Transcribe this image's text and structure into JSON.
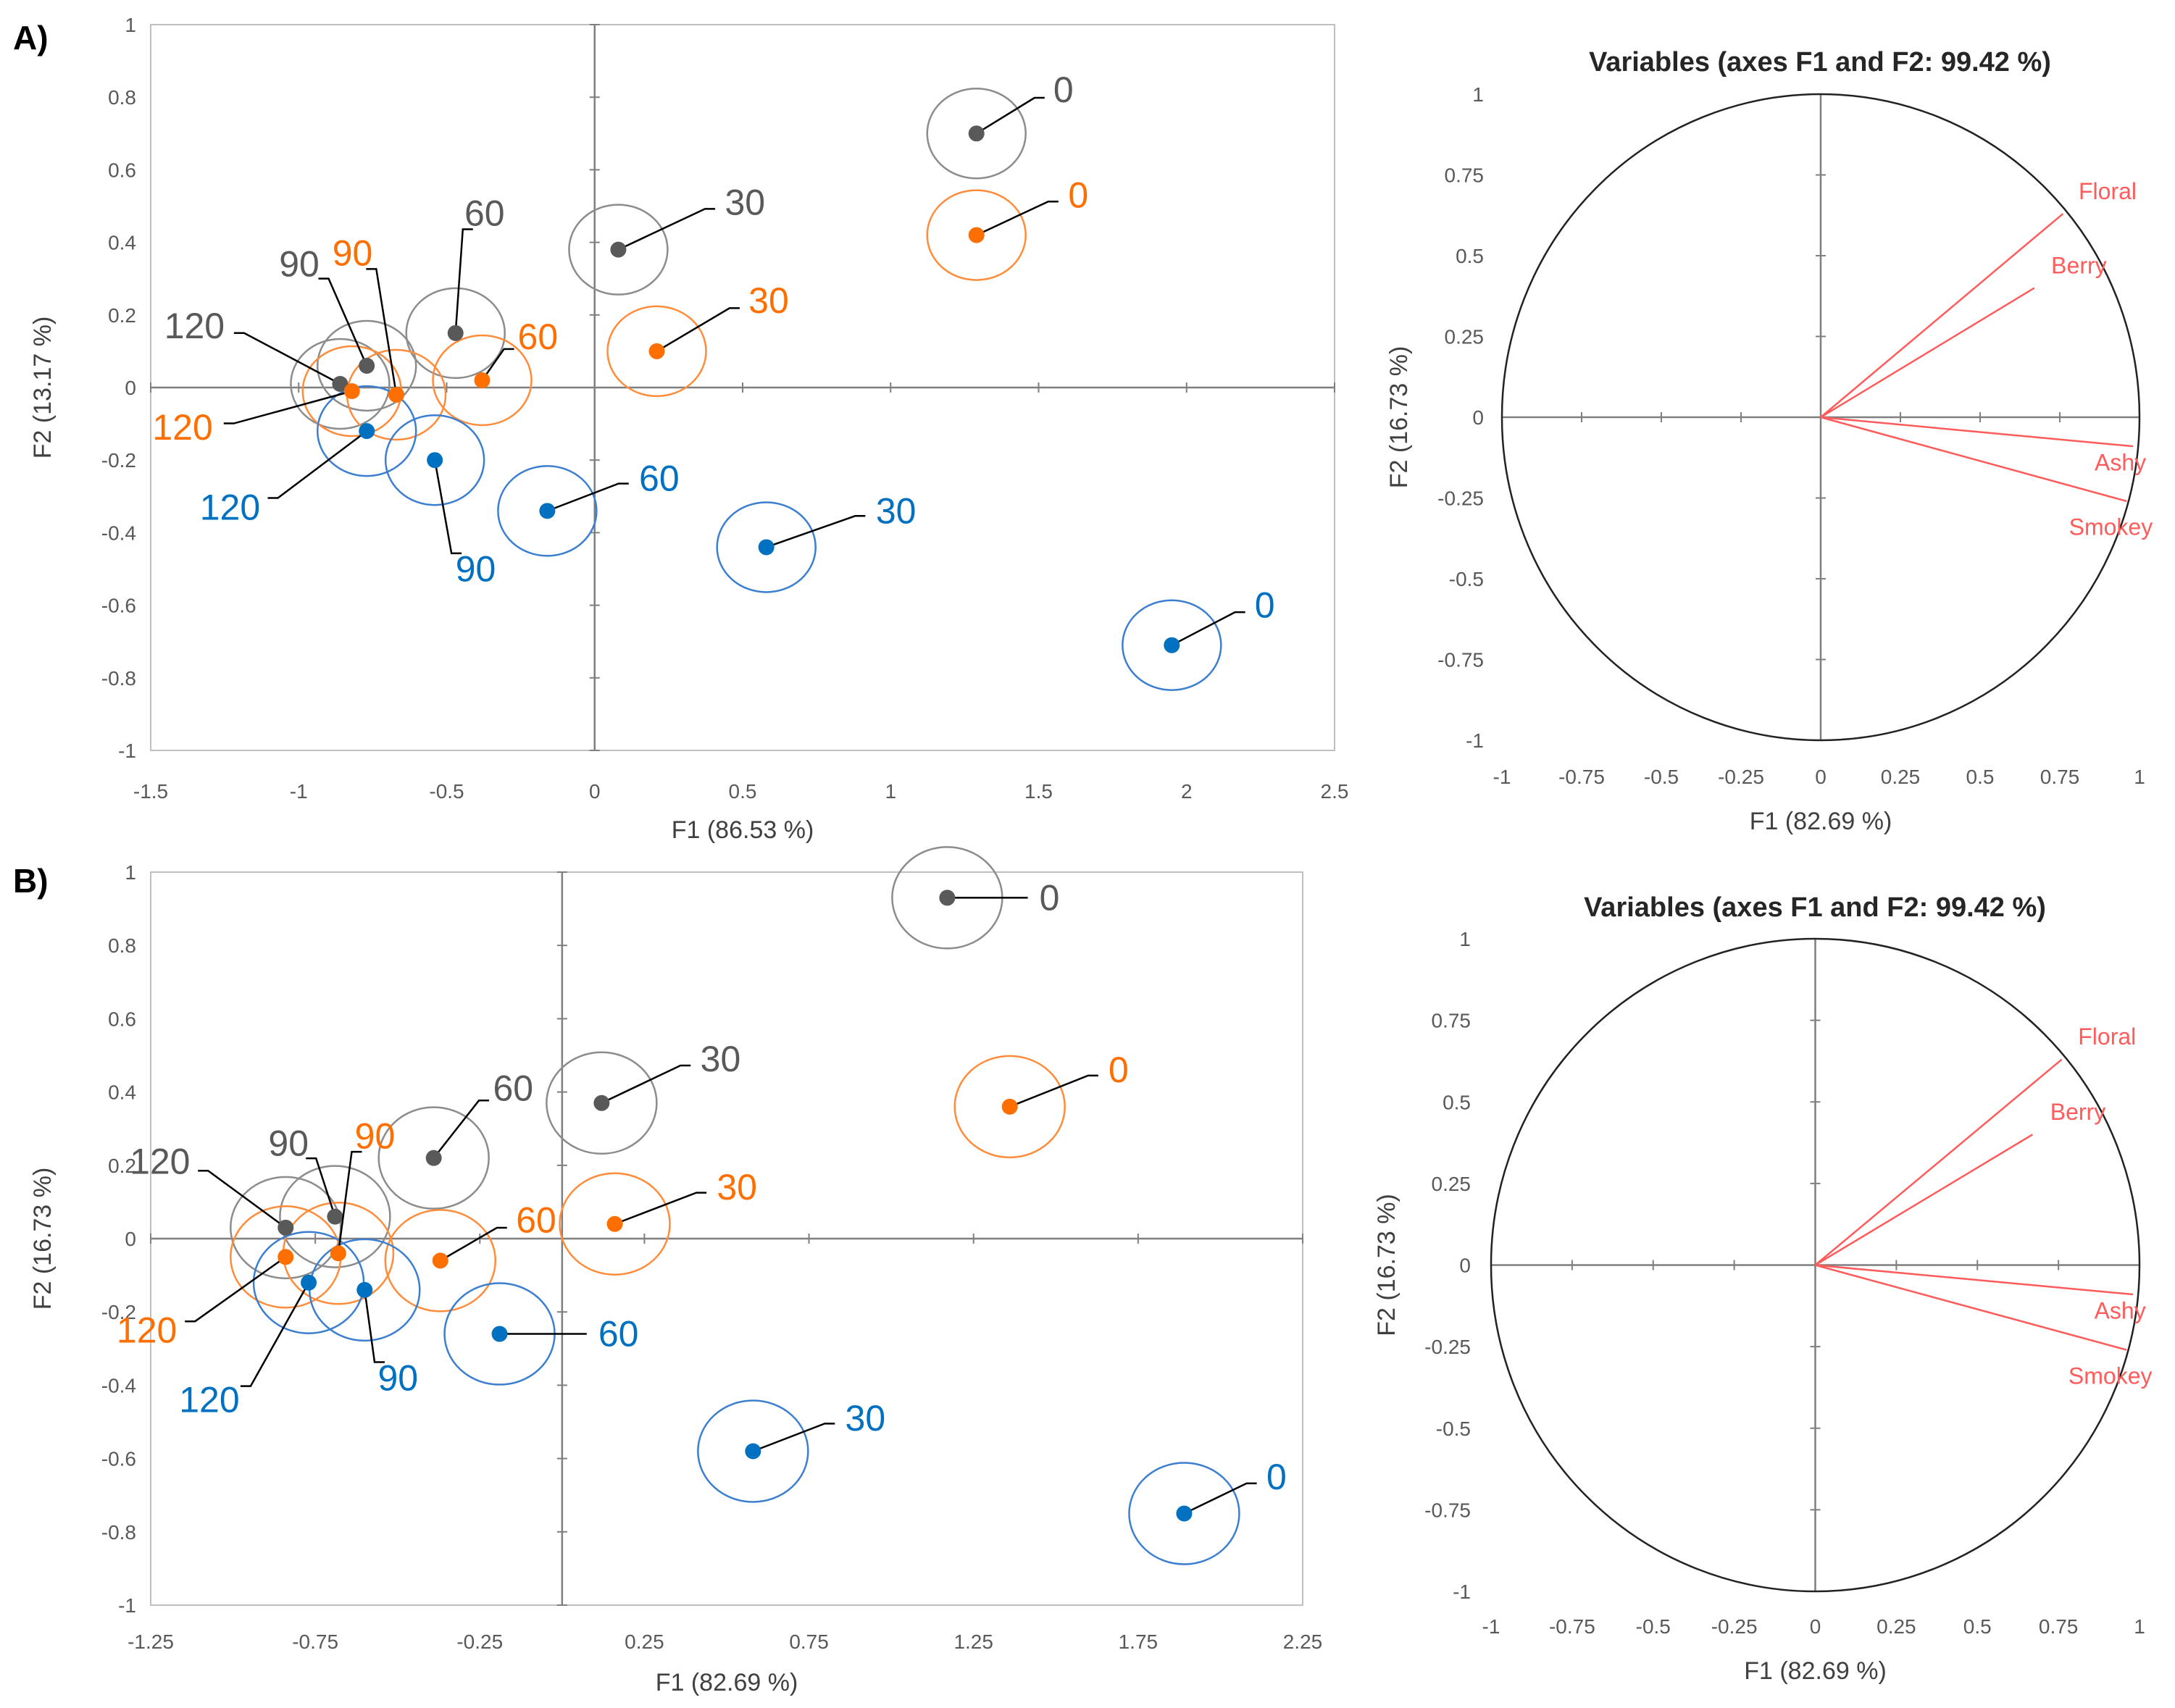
{
  "panel_labels": [
    "A)",
    "B)"
  ],
  "colors": {
    "gray": "#595959",
    "orange": "#ff6f00",
    "blue": "#0070c0",
    "ellipse_gray": "#8c8c8c",
    "ellipse_orange": "#ff8c3a",
    "ellipse_blue": "#3c7fd0",
    "vector": "#ff5b5b",
    "axis": "#7f7f7f",
    "circle": "#222222"
  },
  "chart_data": [
    {
      "type": "scatter",
      "panel": "A)",
      "xlabel": "F1 (86.53 %)",
      "ylabel": "F2 (13.17 %)",
      "xlim": [
        -1.5,
        2.5
      ],
      "ylim": [
        -1,
        1
      ],
      "xticks": [
        "-1.5",
        "-1",
        "-0.5",
        "0",
        "0.5",
        "1",
        "1.5",
        "2",
        "2.5"
      ],
      "yticks": [
        "-1",
        "-0.8",
        "-0.6",
        "-0.4",
        "-0.2",
        "0",
        "0.2",
        "0.4",
        "0.6",
        "0.8",
        "1"
      ],
      "series": [
        {
          "name": "gray",
          "points": [
            {
              "x": 1.29,
              "y": 0.7,
              "label": "0",
              "lx": 1.55,
              "ly": 0.82
            },
            {
              "x": 0.08,
              "y": 0.38,
              "label": "30",
              "lx": 0.44,
              "ly": 0.51
            },
            {
              "x": -0.47,
              "y": 0.15,
              "label": "60",
              "lx": -0.44,
              "ly": 0.48
            },
            {
              "x": -0.77,
              "y": 0.06,
              "label": "90",
              "lx": -0.93,
              "ly": 0.34
            },
            {
              "x": -0.86,
              "y": 0.01,
              "label": "120",
              "lx": -1.25,
              "ly": 0.17
            }
          ]
        },
        {
          "name": "orange",
          "points": [
            {
              "x": 1.29,
              "y": 0.42,
              "label": "0",
              "lx": 1.6,
              "ly": 0.53
            },
            {
              "x": 0.21,
              "y": 0.1,
              "label": "30",
              "lx": 0.52,
              "ly": 0.24
            },
            {
              "x": -0.38,
              "y": 0.02,
              "label": "60",
              "lx": -0.26,
              "ly": 0.14
            },
            {
              "x": -0.67,
              "y": -0.02,
              "label": "90",
              "lx": -0.75,
              "ly": 0.37
            },
            {
              "x": -0.82,
              "y": -0.01,
              "label": "120",
              "lx": -1.29,
              "ly": -0.11
            }
          ]
        },
        {
          "name": "blue",
          "points": [
            {
              "x": 1.95,
              "y": -0.71,
              "label": "0",
              "lx": 2.23,
              "ly": -0.6
            },
            {
              "x": 0.58,
              "y": -0.44,
              "label": "30",
              "lx": 0.95,
              "ly": -0.34
            },
            {
              "x": -0.16,
              "y": -0.34,
              "label": "60",
              "lx": 0.15,
              "ly": -0.25
            },
            {
              "x": -0.54,
              "y": -0.2,
              "label": "90",
              "lx": -0.47,
              "ly": -0.5
            },
            {
              "x": -0.77,
              "y": -0.12,
              "label": "120",
              "lx": -1.13,
              "ly": -0.33
            }
          ]
        }
      ]
    },
    {
      "type": "vector-circle",
      "panel": "A)",
      "title": "Variables (axes F1 and F2: 99.42 %)",
      "xlabel": "F1 (82.69 %)",
      "ylabel": "F2 (16.73 %)",
      "xlim": [
        -1,
        1
      ],
      "ylim": [
        -1,
        1
      ],
      "xticks": [
        "-1",
        "-0.75",
        "-0.5",
        "-0.25",
        "0",
        "0.25",
        "0.5",
        "0.75",
        "1"
      ],
      "yticks": [
        "-1",
        "-0.75",
        "-0.5",
        "-0.25",
        "0",
        "0.25",
        "0.5",
        "0.75",
        "1"
      ],
      "vectors": [
        {
          "name": "Floral",
          "x": 0.76,
          "y": 0.63,
          "lx": 0.9,
          "ly": 0.7
        },
        {
          "name": "Berry",
          "x": 0.67,
          "y": 0.4,
          "lx": 0.81,
          "ly": 0.47
        },
        {
          "name": "Ashy",
          "x": 0.98,
          "y": -0.09,
          "lx": 0.94,
          "ly": -0.14
        },
        {
          "name": "Smokey",
          "x": 0.96,
          "y": -0.26,
          "lx": 0.91,
          "ly": -0.34
        }
      ]
    },
    {
      "type": "scatter",
      "panel": "B)",
      "xlabel": "F1 (82.69 %)",
      "ylabel": "F2 (16.73 %)",
      "xlim": [
        -1.25,
        2.25
      ],
      "ylim": [
        -1,
        1
      ],
      "xticks": [
        "-1.25",
        "-0.75",
        "-0.25",
        "0.25",
        "0.75",
        "1.25",
        "1.75",
        "2.25"
      ],
      "yticks": [
        "-1",
        "-0.8",
        "-0.6",
        "-0.4",
        "-0.2",
        "0",
        "0.2",
        "0.4",
        "0.6",
        "0.8",
        "1"
      ],
      "series": [
        {
          "name": "gray",
          "points": [
            {
              "x": 1.17,
              "y": 0.93,
              "label": "0",
              "lx": 1.45,
              "ly": 0.93
            },
            {
              "x": 0.12,
              "y": 0.37,
              "label": "30",
              "lx": 0.42,
              "ly": 0.49
            },
            {
              "x": -0.39,
              "y": 0.22,
              "label": "60",
              "lx": -0.21,
              "ly": 0.41
            },
            {
              "x": -0.69,
              "y": 0.06,
              "label": "90",
              "lx": -0.77,
              "ly": 0.26
            },
            {
              "x": -0.84,
              "y": 0.03,
              "label": "120",
              "lx": -1.13,
              "ly": 0.21
            }
          ]
        },
        {
          "name": "orange",
          "points": [
            {
              "x": 1.36,
              "y": 0.36,
              "label": "0",
              "lx": 1.66,
              "ly": 0.46
            },
            {
              "x": 0.16,
              "y": 0.04,
              "label": "30",
              "lx": 0.47,
              "ly": 0.14
            },
            {
              "x": -0.37,
              "y": -0.06,
              "label": "60",
              "lx": -0.14,
              "ly": 0.05
            },
            {
              "x": -0.68,
              "y": -0.04,
              "label": "90",
              "lx": -0.63,
              "ly": 0.28
            },
            {
              "x": -0.84,
              "y": -0.05,
              "label": "120",
              "lx": -1.17,
              "ly": -0.25
            }
          ]
        },
        {
          "name": "blue",
          "points": [
            {
              "x": 1.89,
              "y": -0.75,
              "label": "0",
              "lx": 2.14,
              "ly": -0.65
            },
            {
              "x": 0.58,
              "y": -0.58,
              "label": "30",
              "lx": 0.86,
              "ly": -0.49
            },
            {
              "x": -0.19,
              "y": -0.26,
              "label": "60",
              "lx": 0.11,
              "ly": -0.26
            },
            {
              "x": -0.6,
              "y": -0.14,
              "label": "90",
              "lx": -0.56,
              "ly": -0.38
            },
            {
              "x": -0.77,
              "y": -0.12,
              "label": "120",
              "lx": -0.98,
              "ly": -0.44
            }
          ]
        }
      ]
    },
    {
      "type": "vector-circle",
      "panel": "B)",
      "title": "Variables (axes F1 and F2: 99.42 %)",
      "xlabel": "F1 (82.69 %)",
      "ylabel": "F2 (16.73 %)",
      "xlim": [
        -1,
        1
      ],
      "ylim": [
        -1,
        1
      ],
      "xticks": [
        "-1",
        "-0.75",
        "-0.5",
        "-0.25",
        "0",
        "0.25",
        "0.5",
        "0.75",
        "1"
      ],
      "yticks": [
        "-1",
        "-0.75",
        "-0.5",
        "-0.25",
        "0",
        "0.25",
        "0.5",
        "0.75",
        "1"
      ],
      "vectors": [
        {
          "name": "Floral",
          "x": 0.76,
          "y": 0.63,
          "lx": 0.9,
          "ly": 0.7
        },
        {
          "name": "Berry",
          "x": 0.67,
          "y": 0.4,
          "lx": 0.81,
          "ly": 0.47
        },
        {
          "name": "Ashy",
          "x": 0.98,
          "y": -0.09,
          "lx": 0.94,
          "ly": -0.14
        },
        {
          "name": "Smokey",
          "x": 0.96,
          "y": -0.26,
          "lx": 0.91,
          "ly": -0.34
        }
      ]
    }
  ]
}
